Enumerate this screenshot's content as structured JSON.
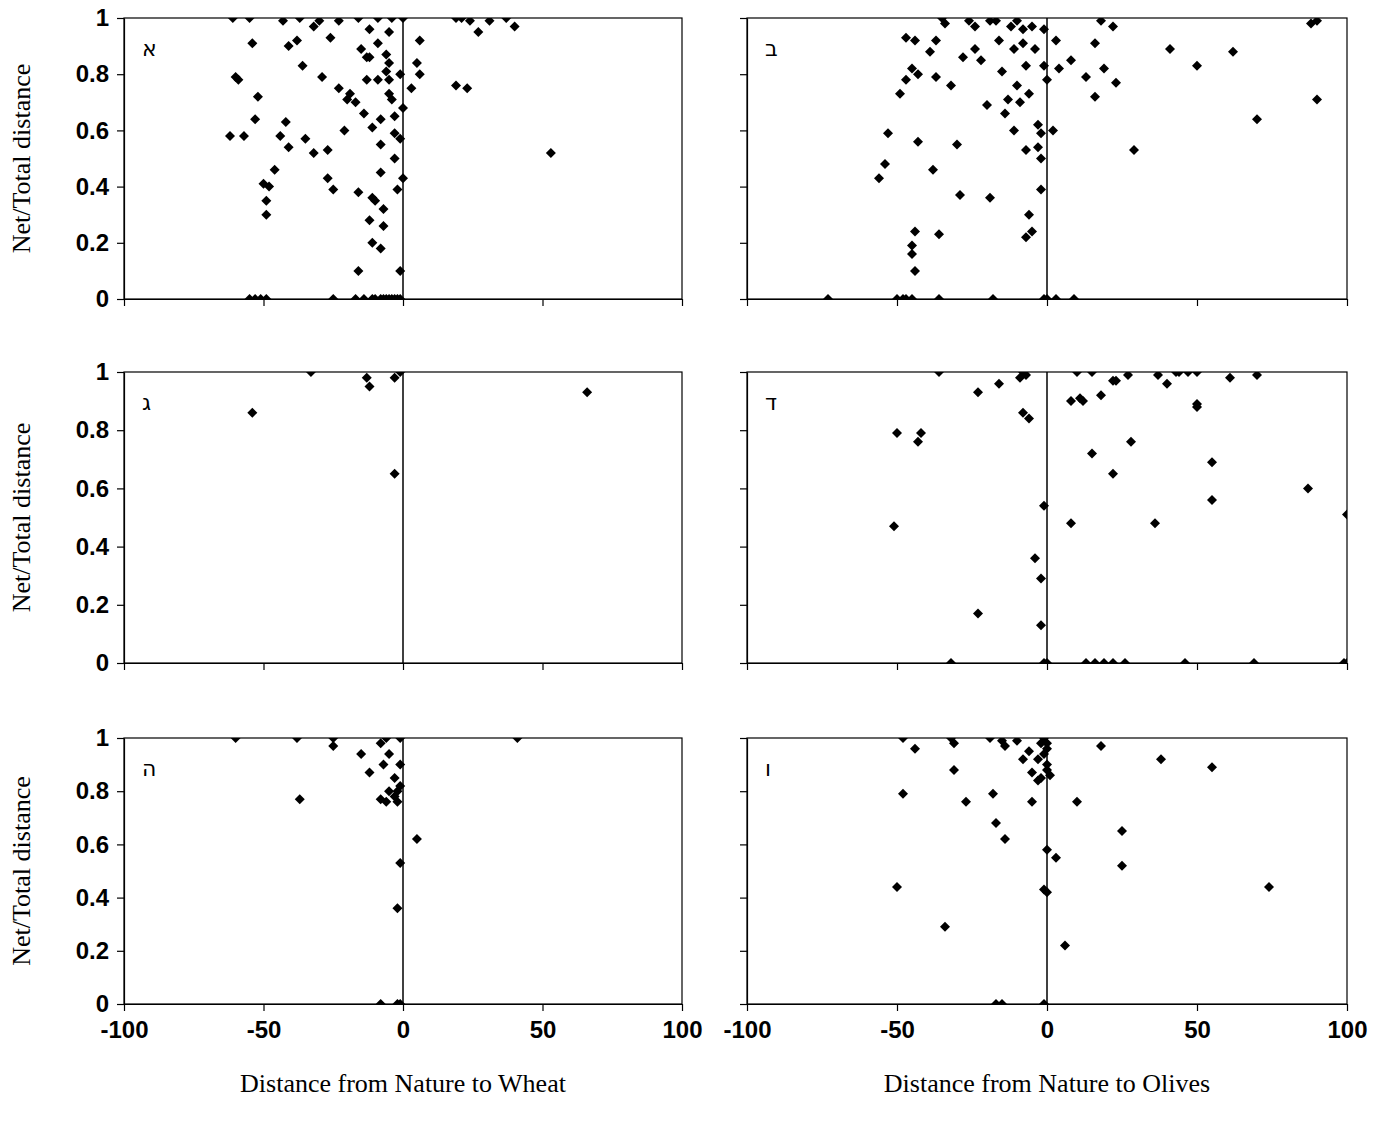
{
  "chart_data": [
    {
      "type": "scatter",
      "title": "א",
      "y_label": "Net/Total distance",
      "tick_labels": "y",
      "marker": "diamond",
      "color": "#000000",
      "xlim": [
        -100,
        100
      ],
      "xticks": [
        -100,
        -50,
        0,
        50,
        100
      ],
      "ylim": [
        0,
        1
      ],
      "yticks": [
        0,
        0.2,
        0.4,
        0.6,
        0.8,
        1
      ],
      "vline": 0,
      "x": [
        -61,
        -55,
        -60,
        -59,
        -62,
        -57,
        -54,
        -52,
        -53,
        -50,
        -48,
        -49,
        -49,
        -46,
        -43,
        -41,
        -38,
        -44,
        -42,
        -41,
        -37,
        -36,
        -35,
        -32,
        -32,
        -30,
        -29,
        -27,
        -26,
        -27,
        -25,
        -23,
        -20,
        -21,
        -23,
        -19,
        -16,
        -15,
        -17,
        -16,
        -16,
        -14,
        -13,
        -13,
        -12,
        -12,
        -11,
        -12,
        -11,
        -10,
        -11,
        -9,
        -9,
        -9,
        -8,
        -8,
        -8,
        -8,
        -7,
        -7,
        -6,
        -6,
        -5,
        -5,
        -5,
        -5,
        -4,
        -4,
        -3,
        -3,
        -3,
        -1,
        -1,
        -2,
        -1,
        0,
        0,
        3,
        5,
        6,
        6,
        0,
        19,
        21,
        24,
        27,
        31,
        37,
        40,
        19,
        23,
        53,
        -55,
        -53,
        -51,
        -49,
        -25,
        -17,
        -14,
        -11,
        -10,
        -8,
        -7,
        -6,
        -5,
        -4,
        -3,
        -2,
        -1
      ],
      "values": [
        1,
        1,
        0.79,
        0.78,
        0.58,
        0.58,
        0.91,
        0.72,
        0.64,
        0.41,
        0.4,
        0.35,
        0.3,
        0.46,
        0.99,
        0.9,
        0.92,
        0.58,
        0.63,
        0.54,
        1,
        0.83,
        0.57,
        0.97,
        0.52,
        0.99,
        0.79,
        0.53,
        0.93,
        0.43,
        0.39,
        0.75,
        0.71,
        0.6,
        0.99,
        0.73,
        1,
        0.89,
        0.7,
        0.38,
        0.1,
        0.66,
        0.86,
        0.78,
        0.86,
        0.96,
        0.36,
        0.28,
        0.2,
        0.35,
        0.61,
        1,
        0.91,
        0.78,
        0.64,
        0.55,
        0.45,
        0.18,
        0.32,
        0.26,
        0.87,
        0.81,
        0.73,
        0.95,
        0.78,
        0.84,
        1,
        0.71,
        0.59,
        0.5,
        0.65,
        0.57,
        0.8,
        0.39,
        0.1,
        0.68,
        1,
        0.75,
        0.84,
        0.92,
        0.8,
        0.43,
        1,
        1,
        0.99,
        0.95,
        0.99,
        1,
        0.97,
        0.76,
        0.75,
        0.52,
        0,
        0,
        0,
        0,
        0,
        0,
        0,
        0,
        0,
        0,
        0,
        0,
        0,
        0,
        0,
        0,
        0
      ]
    },
    {
      "type": "scatter",
      "title": "ב",
      "tick_labels": false,
      "marker": "diamond",
      "color": "#000000",
      "xlim": [
        -100,
        100
      ],
      "xticks": [
        -100,
        -50,
        0,
        50,
        100
      ],
      "ylim": [
        0,
        1
      ],
      "yticks": [
        0,
        0.2,
        0.4,
        0.6,
        0.8,
        1
      ],
      "vline": 0,
      "x": [
        -56,
        -54,
        -53,
        -49,
        -47,
        -44,
        -47,
        -45,
        -43,
        -45,
        -45,
        -44,
        -44,
        -43,
        -39,
        -37,
        -35,
        -34,
        -37,
        -36,
        -38,
        -32,
        -30,
        -29,
        -28,
        -26,
        -24,
        -24,
        -22,
        -20,
        -19,
        -19,
        -17,
        -16,
        -15,
        -14,
        -13,
        -12,
        -11,
        -11,
        -10,
        -10,
        -9,
        -8,
        -8,
        -7,
        -7,
        -6,
        -6,
        -7,
        -5,
        -5,
        -4,
        -3,
        -3,
        -2,
        -2,
        -1,
        -1,
        0,
        -2,
        2,
        3,
        4,
        8,
        13,
        16,
        18,
        19,
        16,
        22,
        23,
        41,
        50,
        62,
        29,
        70,
        88,
        90,
        90,
        -73,
        -50,
        -48,
        -47,
        -45,
        -36,
        -18,
        -1,
        0,
        3,
        9
      ],
      "values": [
        0.43,
        0.48,
        0.59,
        0.73,
        0.93,
        0.92,
        0.78,
        0.82,
        0.8,
        0.16,
        0.19,
        0.24,
        0.1,
        0.56,
        0.88,
        0.92,
        1,
        0.98,
        0.79,
        0.23,
        0.46,
        0.76,
        0.55,
        0.37,
        0.86,
        0.99,
        0.97,
        0.89,
        0.85,
        0.69,
        0.36,
        0.99,
        0.99,
        0.92,
        0.81,
        0.66,
        0.71,
        0.97,
        0.89,
        0.6,
        0.99,
        0.76,
        0.7,
        0.96,
        0.91,
        0.83,
        0.53,
        0.73,
        0.3,
        0.22,
        0.24,
        0.97,
        0.89,
        0.62,
        0.54,
        0.5,
        0.39,
        0.96,
        0.83,
        0.78,
        0.59,
        0.6,
        0.92,
        0.82,
        0.85,
        0.79,
        0.91,
        0.99,
        0.82,
        0.72,
        0.97,
        0.77,
        0.89,
        0.83,
        0.88,
        0.53,
        0.64,
        0.98,
        0.99,
        0.71,
        0,
        0,
        0,
        0,
        0,
        0,
        0,
        0,
        0,
        0,
        0
      ]
    },
    {
      "type": "scatter",
      "title": "ג",
      "y_label": "Net/Total distance",
      "tick_labels": "y",
      "marker": "diamond",
      "color": "#000000",
      "xlim": [
        -100,
        100
      ],
      "xticks": [
        -100,
        -50,
        0,
        50,
        100
      ],
      "ylim": [
        0,
        1
      ],
      "yticks": [
        0,
        0.2,
        0.4,
        0.6,
        0.8,
        1
      ],
      "vline": 0,
      "x": [
        -54,
        -33,
        -13,
        -12,
        -3,
        -1,
        -3,
        66
      ],
      "values": [
        0.86,
        1,
        0.98,
        0.95,
        0.98,
        1,
        0.65,
        0.93
      ]
    },
    {
      "type": "scatter",
      "title": "ד",
      "tick_labels": false,
      "marker": "diamond",
      "color": "#000000",
      "xlim": [
        -100,
        100
      ],
      "xticks": [
        -100,
        -50,
        0,
        50,
        100
      ],
      "ylim": [
        0,
        1
      ],
      "yticks": [
        0,
        0.2,
        0.4,
        0.6,
        0.8,
        1
      ],
      "vline": 0,
      "x": [
        -50,
        -51,
        -43,
        -42,
        -36,
        -23,
        -23,
        -16,
        -9,
        -8,
        -7,
        -8,
        -6,
        -4,
        -2,
        -2,
        -1,
        8,
        11,
        12,
        10,
        15,
        18,
        23,
        22,
        27,
        28,
        15,
        22,
        40,
        37,
        43,
        47,
        50,
        44,
        50,
        50,
        61,
        70,
        55,
        55,
        36,
        87,
        100,
        8,
        -32,
        -1,
        0,
        13,
        16,
        19,
        22,
        26,
        46,
        69,
        99,
        100
      ],
      "values": [
        0.79,
        0.47,
        0.76,
        0.79,
        1,
        0.93,
        0.17,
        0.96,
        0.98,
        1,
        0.99,
        0.86,
        0.84,
        0.36,
        0.29,
        0.13,
        0.54,
        0.9,
        0.91,
        0.9,
        1,
        1,
        0.92,
        0.97,
        0.97,
        0.99,
        0.76,
        0.72,
        0.65,
        0.96,
        0.99,
        1,
        1,
        1,
        1,
        0.89,
        0.88,
        0.98,
        0.99,
        0.69,
        0.56,
        0.48,
        0.6,
        0.51,
        0.48,
        0,
        0,
        0,
        0,
        0,
        0,
        0,
        0,
        0,
        0,
        0,
        0
      ]
    },
    {
      "type": "scatter",
      "title": "ה",
      "y_label": "Net/Total distance",
      "x_label": "Distance from Nature to Wheat",
      "tick_labels": true,
      "marker": "diamond",
      "color": "#000000",
      "xlim": [
        -100,
        100
      ],
      "xticks": [
        -100,
        -50,
        0,
        50,
        100
      ],
      "ylim": [
        0,
        1
      ],
      "yticks": [
        0,
        0.2,
        0.4,
        0.6,
        0.8,
        1
      ],
      "vline": 0,
      "x": [
        -60,
        -38,
        -25,
        -25,
        -37,
        -15,
        -12,
        -8,
        -6,
        -7,
        -5,
        -5,
        -2,
        -3,
        -8,
        -6,
        -1,
        -1,
        -3,
        -1,
        -2,
        -1,
        -2,
        5,
        41,
        -8,
        -2,
        -1
      ],
      "values": [
        1,
        1,
        1,
        0.97,
        0.77,
        0.94,
        0.87,
        0.98,
        1,
        0.9,
        0.94,
        0.8,
        0.8,
        0.78,
        0.77,
        0.76,
        1,
        0.9,
        0.85,
        0.82,
        0.76,
        0.53,
        0.36,
        0.62,
        1,
        0,
        0,
        0
      ]
    },
    {
      "type": "scatter",
      "title": "ו",
      "x_label": "Distance from Nature to Olives",
      "tick_labels": "x",
      "marker": "diamond",
      "color": "#000000",
      "xlim": [
        -100,
        100
      ],
      "xticks": [
        -100,
        -50,
        0,
        50,
        100
      ],
      "ylim": [
        0,
        1
      ],
      "yticks": [
        0,
        0.2,
        0.4,
        0.6,
        0.8,
        1
      ],
      "vline": 0,
      "x": [
        -48,
        -44,
        -48,
        -32,
        -31,
        -31,
        -27,
        -19,
        -15,
        -14,
        -18,
        -17,
        -14,
        -10,
        -8,
        -6,
        -5,
        -3,
        -1,
        0,
        -2,
        0,
        -1,
        0,
        0,
        -2,
        1,
        -5,
        -3,
        0,
        -1,
        0,
        3,
        6,
        10,
        18,
        25,
        25,
        38,
        55,
        74,
        -50,
        -34,
        -17,
        -15,
        -1
      ],
      "values": [
        1,
        0.96,
        0.79,
        1,
        0.98,
        0.88,
        0.76,
        1,
        0.99,
        0.97,
        0.79,
        0.68,
        0.62,
        0.99,
        0.92,
        0.95,
        0.87,
        0.84,
        1,
        0.98,
        0.98,
        0.96,
        0.94,
        0.9,
        0.88,
        0.85,
        0.86,
        0.76,
        0.92,
        0.58,
        0.43,
        0.42,
        0.55,
        0.22,
        0.76,
        0.97,
        0.65,
        0.52,
        0.92,
        0.89,
        0.44,
        0.44,
        0.29,
        0,
        0,
        0
      ]
    }
  ]
}
